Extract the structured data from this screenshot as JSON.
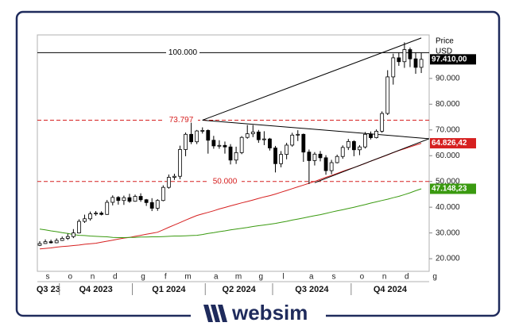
{
  "brand": "websim",
  "chart_data": {
    "type": "candlestick",
    "y_axis_label": "Price",
    "y_axis_unit": "USD",
    "categories": [
      "s",
      null,
      null,
      null,
      "o",
      null,
      null,
      null,
      "n",
      null,
      null,
      null,
      "d",
      null,
      null,
      null,
      null,
      "g",
      null,
      null,
      null,
      "f",
      null,
      null,
      null,
      "m",
      null,
      null,
      null,
      null,
      "a",
      null,
      null,
      null,
      "m",
      null,
      null,
      null,
      "g",
      null,
      null,
      null,
      "l",
      null,
      null,
      null,
      null,
      "a",
      null,
      null,
      null,
      "s",
      null,
      null,
      null,
      null,
      "o",
      null,
      null,
      null,
      "n",
      null,
      null,
      null,
      "d",
      null,
      null,
      null,
      null,
      "g"
    ],
    "periods": [
      {
        "label": "Q3 23",
        "start": 0
      },
      {
        "label": "Q4 2023",
        "start": 4
      },
      {
        "label": "Q1 2024",
        "start": 17
      },
      {
        "label": "Q2 2024",
        "start": 30
      },
      {
        "label": "Q3 2024",
        "start": 42
      },
      {
        "label": "Q4 2024",
        "start": 56
      }
    ],
    "open": [
      25200,
      25900,
      26600,
      26200,
      27100,
      27900,
      28600,
      30000,
      34500,
      35500,
      37400,
      37700,
      37200,
      41900,
      43800,
      42600,
      43700,
      42300,
      44200,
      42900,
      41800,
      39600,
      42600,
      47700,
      51600,
      52000,
      62400,
      68300,
      65400,
      69600,
      69800,
      66000,
      63800,
      64000,
      63400,
      58300,
      61200,
      67100,
      68500,
      69200,
      66200,
      66500,
      63000,
      56900,
      60500,
      64100,
      68000,
      68300,
      61400,
      58100,
      60600,
      59200,
      54200,
      57300,
      59700,
      63200,
      65500,
      62300,
      63400,
      68300,
      67000,
      69500,
      76400,
      90600,
      98000,
      96500,
      101200,
      97600,
      94300,
      null
    ],
    "high": [
      26800,
      27500,
      27400,
      27900,
      28600,
      29700,
      31500,
      35300,
      37100,
      38300,
      38500,
      38400,
      42800,
      44600,
      44300,
      44500,
      45200,
      44900,
      45400,
      43200,
      43500,
      43100,
      48500,
      52700,
      53000,
      63900,
      69000,
      72800,
      70000,
      71000,
      70200,
      67700,
      66000,
      65500,
      64500,
      63500,
      67600,
      71900,
      71900,
      70000,
      69500,
      66900,
      63800,
      61800,
      65000,
      68900,
      69900,
      68600,
      62400,
      61400,
      61800,
      60200,
      58400,
      60400,
      64000,
      66500,
      66000,
      64100,
      69200,
      69400,
      70200,
      77200,
      93200,
      99600,
      100000,
      104000,
      102000,
      100000,
      99900,
      null
    ],
    "low": [
      24900,
      25800,
      25900,
      26000,
      26900,
      27300,
      28000,
      29800,
      33900,
      34800,
      36700,
      36800,
      37000,
      40700,
      41000,
      40900,
      41700,
      42100,
      42100,
      40500,
      38500,
      38600,
      42300,
      47200,
      50600,
      50900,
      59800,
      64500,
      64500,
      68600,
      60800,
      62700,
      62700,
      60800,
      56600,
      56800,
      60600,
      66600,
      67200,
      65000,
      64100,
      62000,
      53500,
      55500,
      58600,
      63500,
      65700,
      57600,
      49000,
      56200,
      57800,
      52600,
      52800,
      57000,
      58800,
      62200,
      59800,
      60200,
      62800,
      66300,
      66700,
      68900,
      75800,
      87600,
      94900,
      94100,
      94400,
      91800,
      92100,
      null
    ],
    "close": [
      25900,
      26600,
      26200,
      27100,
      27900,
      28600,
      30000,
      34500,
      35500,
      37400,
      37700,
      37200,
      41900,
      43800,
      42600,
      43700,
      42300,
      44200,
      42900,
      41800,
      39600,
      42600,
      47700,
      51600,
      52000,
      62400,
      68300,
      65400,
      69600,
      69800,
      66000,
      63800,
      64000,
      63400,
      58300,
      61200,
      67100,
      68500,
      69200,
      66200,
      66500,
      63000,
      56900,
      60500,
      64100,
      68000,
      68300,
      61400,
      58100,
      60600,
      59200,
      54200,
      57300,
      59700,
      63200,
      65500,
      62300,
      63400,
      68300,
      67000,
      69500,
      76400,
      90600,
      98000,
      96500,
      101200,
      97600,
      94300,
      97410,
      null
    ],
    "last_value": 97410,
    "last_value_label": "97.410,00",
    "series": [
      {
        "color": "#d62020",
        "last_value": 64826.42,
        "last_value_label": "64.826,42",
        "values": [
          23800,
          24000,
          24200,
          24500,
          24700,
          24900,
          25100,
          25300,
          25600,
          25800,
          26000,
          26400,
          26800,
          27200,
          27600,
          28000,
          28300,
          28700,
          29100,
          29500,
          29900,
          30300,
          31200,
          32200,
          33100,
          34000,
          35000,
          35900,
          36800,
          37400,
          38000,
          38600,
          39300,
          39900,
          40500,
          41100,
          41700,
          42200,
          42800,
          43400,
          44000,
          44500,
          45100,
          45800,
          46500,
          47200,
          47900,
          48600,
          49300,
          50000,
          50800,
          51600,
          52300,
          53100,
          53900,
          54700,
          55400,
          56200,
          57000,
          57900,
          58700,
          59500,
          60300,
          61200,
          62000,
          62700,
          63400,
          64100,
          64826.42,
          null
        ]
      },
      {
        "color": "#3a9a10",
        "last_value": 47148.23,
        "last_value_label": "47.148,23",
        "values": [
          31500,
          31200,
          30800,
          30500,
          30100,
          29800,
          29400,
          29100,
          29000,
          28800,
          28700,
          28600,
          28500,
          28300,
          28200,
          28200,
          28300,
          28300,
          28400,
          28400,
          28500,
          28500,
          28600,
          28700,
          28800,
          28800,
          28900,
          29000,
          29100,
          29400,
          29800,
          30100,
          30500,
          30800,
          31200,
          31500,
          31800,
          32100,
          32500,
          32800,
          33100,
          33400,
          33700,
          34100,
          34500,
          35000,
          35400,
          35800,
          36300,
          36700,
          37100,
          37600,
          38100,
          38600,
          39000,
          39500,
          40000,
          40500,
          41000,
          41600,
          42100,
          42600,
          43100,
          43700,
          44200,
          44900,
          45600,
          46400,
          47148.23,
          null
        ]
      }
    ],
    "levels": [
      {
        "value": 100000,
        "label": "100.000",
        "color": "#000000",
        "dashed": false
      },
      {
        "value": 73797,
        "label": "73.797",
        "color": "#d62020",
        "dashed": true
      },
      {
        "value": 50000,
        "label": "50.000",
        "color": "#d62020",
        "dashed": true
      }
    ],
    "trendlines": [
      {
        "x": [
          29,
          68
        ],
        "y": [
          73797,
          105700
        ]
      },
      {
        "x": [
          29,
          69.4
        ],
        "y": [
          73797,
          66600
        ]
      },
      {
        "x": [
          49,
          69.4
        ],
        "y": [
          49500,
          66600
        ]
      }
    ],
    "ylim": [
      15100,
      106900
    ],
    "yticks": [
      {
        "value": 20000,
        "label": "20.000"
      },
      {
        "value": 30000,
        "label": "30.000"
      },
      {
        "value": 40000,
        "label": "40.000"
      },
      {
        "value": 50000,
        "label": "50.000"
      },
      {
        "value": 60000,
        "label": "60.000"
      },
      {
        "value": 70000,
        "label": "70.000"
      },
      {
        "value": 80000,
        "label": "80.000"
      },
      {
        "value": 90000,
        "label": "90.000"
      }
    ],
    "up_color": "#ffffff",
    "down_color": "#000000"
  }
}
